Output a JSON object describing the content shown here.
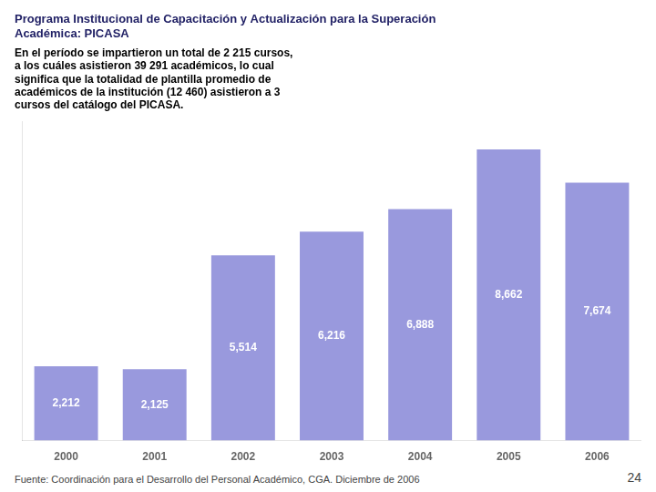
{
  "chart_data": {
    "type": "bar",
    "title": "Programa Institucional de Capacitación y Actualización para la Superación\nAcadémica: PICASA",
    "subtitle": "En el período se impartieron un total de 2 215 cursos,\na los cuáles asistieron 39 291 académicos, lo cual\nsignifica que la totalidad de plantilla promedio de\nacadémicos de la institución (12 460) asistieron a 3\ncursos del catálogo del PICASA.",
    "annotations": [
      "Fuente: Coordinación para el Desarrollo del Personal Académico, CGA. Diciembre de 2006",
      "24"
    ],
    "categories": [
      "2000",
      "2001",
      "2002",
      "2003",
      "2004",
      "2005",
      "2006"
    ],
    "values": [
      2212,
      2125,
      5514,
      6216,
      6888,
      8662,
      7674
    ],
    "value_labels": [
      "2,212",
      "2,125",
      "5,514",
      "6,216",
      "6,888",
      "8,662",
      "7,674"
    ],
    "data_labels": true,
    "color": "#9999dd",
    "ylim": [
      0,
      9500
    ],
    "grid": false,
    "tick_labels": "x"
  }
}
